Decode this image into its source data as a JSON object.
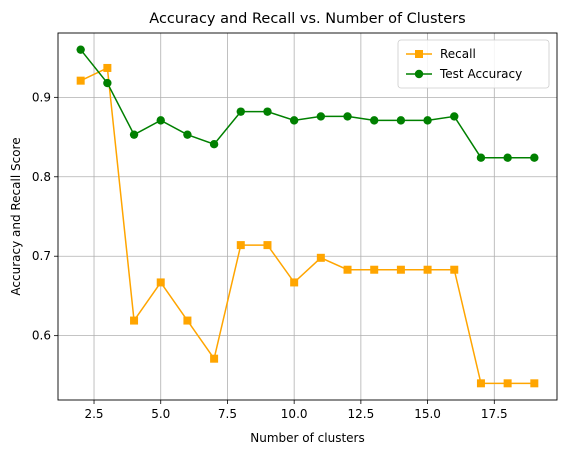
{
  "chart_data": {
    "type": "line",
    "title": "Accuracy and Recall vs. Number of Clusters",
    "xlabel": "Number of clusters",
    "ylabel": "Accuracy and Recall Score",
    "xlim": [
      1.15,
      19.85
    ],
    "ylim": [
      0.519,
      0.981
    ],
    "xticks": [
      2.5,
      5.0,
      7.5,
      10.0,
      12.5,
      15.0,
      17.5
    ],
    "xtick_labels": [
      "2.5",
      "5.0",
      "7.5",
      "10.0",
      "12.5",
      "15.0",
      "17.5"
    ],
    "yticks": [
      0.6,
      0.7,
      0.8,
      0.9
    ],
    "ytick_labels": [
      "0.6",
      "0.7",
      "0.8",
      "0.9"
    ],
    "grid": true,
    "legend_position": "top-right",
    "x": [
      2,
      3,
      4,
      5,
      6,
      7,
      8,
      9,
      10,
      11,
      12,
      13,
      14,
      15,
      16,
      17,
      18,
      19
    ],
    "series": [
      {
        "name": "Recall",
        "color": "#ffa500",
        "marker": "square",
        "values": [
          0.921,
          0.937,
          0.619,
          0.667,
          0.619,
          0.571,
          0.714,
          0.714,
          0.667,
          0.698,
          0.683,
          0.683,
          0.683,
          0.683,
          0.683,
          0.54,
          0.54,
          0.54
        ]
      },
      {
        "name": "Test Accuracy",
        "color": "#008000",
        "marker": "circle",
        "values": [
          0.96,
          0.918,
          0.853,
          0.871,
          0.853,
          0.841,
          0.882,
          0.882,
          0.871,
          0.876,
          0.876,
          0.871,
          0.871,
          0.871,
          0.876,
          0.824,
          0.824,
          0.824
        ]
      }
    ]
  }
}
